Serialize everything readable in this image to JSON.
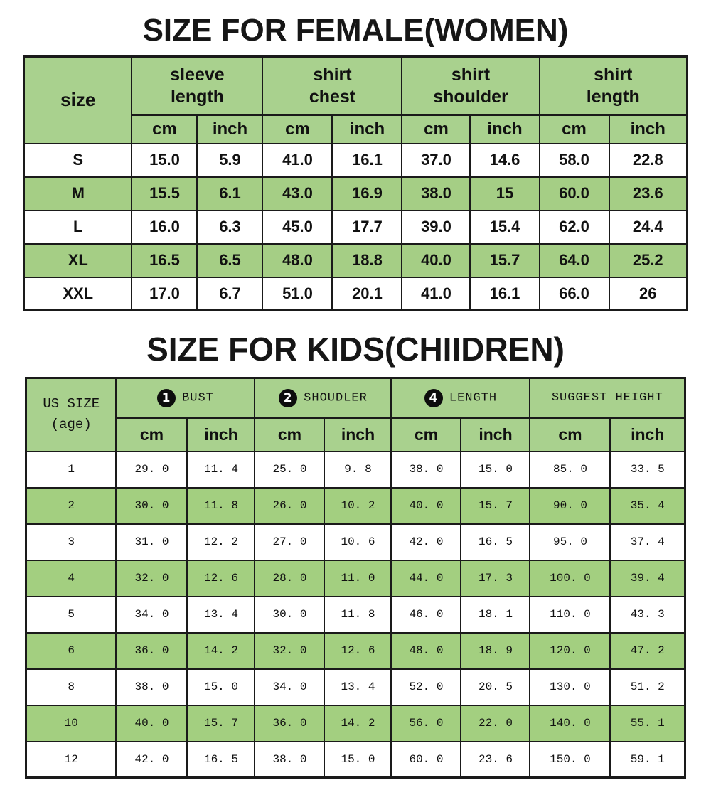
{
  "colors": {
    "page_bg": "#ffffff",
    "green_header": "#a9d18e",
    "stripe_women": "#a5ce85",
    "stripe_kids": "#a3cf80",
    "border_color": "#1a1a1a",
    "text_color": "#111111"
  },
  "units": {
    "cm": "cm",
    "inch": "inch"
  },
  "women_section": {
    "title": "SIZE FOR FEMALE(WOMEN)",
    "table": {
      "corner_label": "size",
      "groups": [
        {
          "label": "sleeve\nlength"
        },
        {
          "label": "shirt\nchest"
        },
        {
          "label": "shirt\nshoulder"
        },
        {
          "label": "shirt\nlength"
        }
      ],
      "rows": [
        [
          "S",
          "15.0",
          "5.9",
          "41.0",
          "16.1",
          "37.0",
          "14.6",
          "58.0",
          "22.8"
        ],
        [
          "M",
          "15.5",
          "6.1",
          "43.0",
          "16.9",
          "38.0",
          "15",
          "60.0",
          "23.6"
        ],
        [
          "L",
          "16.0",
          "6.3",
          "45.0",
          "17.7",
          "39.0",
          "15.4",
          "62.0",
          "24.4"
        ],
        [
          "XL",
          "16.5",
          "6.5",
          "48.0",
          "18.8",
          "40.0",
          "15.7",
          "64.0",
          "25.2"
        ],
        [
          "XXL",
          "17.0",
          "6.7",
          "51.0",
          "20.1",
          "41.0",
          "16.1",
          "66.0",
          "26"
        ]
      ]
    }
  },
  "kids_section": {
    "title": "SIZE FOR KIDS(CHIIDREN)",
    "table": {
      "corner_label": "US SIZE\n(age)",
      "groups": [
        {
          "badge": "1",
          "label": "BUST"
        },
        {
          "badge": "2",
          "label": "SHOUDLER"
        },
        {
          "badge": "4",
          "label": "LENGTH"
        },
        {
          "badge": "",
          "label": "SUGGEST HEIGHT"
        }
      ],
      "rows": [
        [
          "1",
          "29. 0",
          "11. 4",
          "25. 0",
          "9. 8",
          "38. 0",
          "15. 0",
          "85. 0",
          "33. 5"
        ],
        [
          "2",
          "30. 0",
          "11. 8",
          "26. 0",
          "10. 2",
          "40. 0",
          "15. 7",
          "90. 0",
          "35. 4"
        ],
        [
          "3",
          "31. 0",
          "12. 2",
          "27. 0",
          "10. 6",
          "42. 0",
          "16. 5",
          "95. 0",
          "37. 4"
        ],
        [
          "4",
          "32. 0",
          "12. 6",
          "28. 0",
          "11. 0",
          "44. 0",
          "17. 3",
          "100. 0",
          "39. 4"
        ],
        [
          "5",
          "34. 0",
          "13. 4",
          "30. 0",
          "11. 8",
          "46. 0",
          "18. 1",
          "110. 0",
          "43. 3"
        ],
        [
          "6",
          "36. 0",
          "14. 2",
          "32. 0",
          "12. 6",
          "48. 0",
          "18. 9",
          "120. 0",
          "47. 2"
        ],
        [
          "8",
          "38. 0",
          "15. 0",
          "34. 0",
          "13. 4",
          "52. 0",
          "20. 5",
          "130. 0",
          "51. 2"
        ],
        [
          "10",
          "40. 0",
          "15. 7",
          "36. 0",
          "14. 2",
          "56. 0",
          "22. 0",
          "140. 0",
          "55. 1"
        ],
        [
          "12",
          "42. 0",
          "16. 5",
          "38. 0",
          "15. 0",
          "60. 0",
          "23. 6",
          "150. 0",
          "59. 1"
        ]
      ]
    }
  },
  "chart_data": [
    {
      "type": "table",
      "title": "SIZE FOR FEMALE(WOMEN)",
      "columns": [
        "size",
        "sleeve length cm",
        "sleeve length inch",
        "shirt chest cm",
        "shirt chest inch",
        "shirt shoulder cm",
        "shirt shoulder inch",
        "shirt length cm",
        "shirt length inch"
      ],
      "rows": [
        [
          "S",
          15.0,
          5.9,
          41.0,
          16.1,
          37.0,
          14.6,
          58.0,
          22.8
        ],
        [
          "M",
          15.5,
          6.1,
          43.0,
          16.9,
          38.0,
          15,
          60.0,
          23.6
        ],
        [
          "L",
          16.0,
          6.3,
          45.0,
          17.7,
          39.0,
          15.4,
          62.0,
          24.4
        ],
        [
          "XL",
          16.5,
          6.5,
          48.0,
          18.8,
          40.0,
          15.7,
          64.0,
          25.2
        ],
        [
          "XXL",
          17.0,
          6.7,
          51.0,
          20.1,
          41.0,
          16.1,
          66.0,
          26
        ]
      ]
    },
    {
      "type": "table",
      "title": "SIZE FOR KIDS(CHIIDREN)",
      "columns": [
        "US SIZE (age)",
        "BUST cm",
        "BUST inch",
        "SHOUDLER cm",
        "SHOUDLER inch",
        "LENGTH cm",
        "LENGTH inch",
        "SUGGEST HEIGHT cm",
        "SUGGEST HEIGHT inch"
      ],
      "rows": [
        [
          1,
          29.0,
          11.4,
          25.0,
          9.8,
          38.0,
          15.0,
          85.0,
          33.5
        ],
        [
          2,
          30.0,
          11.8,
          26.0,
          10.2,
          40.0,
          15.7,
          90.0,
          35.4
        ],
        [
          3,
          31.0,
          12.2,
          27.0,
          10.6,
          42.0,
          16.5,
          95.0,
          37.4
        ],
        [
          4,
          32.0,
          12.6,
          28.0,
          11.0,
          44.0,
          17.3,
          100.0,
          39.4
        ],
        [
          5,
          34.0,
          13.4,
          30.0,
          11.8,
          46.0,
          18.1,
          110.0,
          43.3
        ],
        [
          6,
          36.0,
          14.2,
          32.0,
          12.6,
          48.0,
          18.9,
          120.0,
          47.2
        ],
        [
          8,
          38.0,
          15.0,
          34.0,
          13.4,
          52.0,
          20.5,
          130.0,
          51.2
        ],
        [
          10,
          40.0,
          15.7,
          36.0,
          14.2,
          56.0,
          22.0,
          140.0,
          55.1
        ],
        [
          12,
          42.0,
          16.5,
          38.0,
          15.0,
          60.0,
          23.6,
          150.0,
          59.1
        ]
      ]
    }
  ]
}
